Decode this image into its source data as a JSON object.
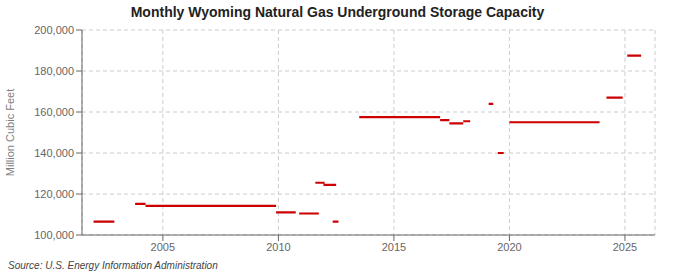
{
  "chart_data": {
    "type": "segments",
    "title": "Monthly Wyoming Natural Gas Underground Storage Capacity",
    "ylabel": "Million Cubic Feet",
    "source": "Source: U.S. Energy Information Administration",
    "color": "#cc0000",
    "grid": true,
    "xlim": [
      2001.5,
      2026.3
    ],
    "ylim": [
      100000,
      200000
    ],
    "xticks": [
      2005,
      2010,
      2015,
      2020,
      2025
    ],
    "yticks": [
      {
        "value": 100000,
        "label": "100,000"
      },
      {
        "value": 120000,
        "label": "120,000"
      },
      {
        "value": 140000,
        "label": "140,000"
      },
      {
        "value": 160000,
        "label": "160,000"
      },
      {
        "value": 180000,
        "label": "180,000"
      },
      {
        "value": 200000,
        "label": "200,000"
      }
    ],
    "segments": [
      {
        "x0": 2002.0,
        "x1": 2002.9,
        "y": 106500
      },
      {
        "x0": 2003.8,
        "x1": 2004.25,
        "y": 115200
      },
      {
        "x0": 2004.25,
        "x1": 2009.9,
        "y": 114200
      },
      {
        "x0": 2009.9,
        "x1": 2010.75,
        "y": 111000
      },
      {
        "x0": 2010.9,
        "x1": 2011.75,
        "y": 110500
      },
      {
        "x0": 2011.6,
        "x1": 2012.0,
        "y": 125500
      },
      {
        "x0": 2011.95,
        "x1": 2012.5,
        "y": 124500
      },
      {
        "x0": 2012.35,
        "x1": 2012.6,
        "y": 106500
      },
      {
        "x0": 2013.5,
        "x1": 2017.0,
        "y": 157500
      },
      {
        "x0": 2017.0,
        "x1": 2017.4,
        "y": 156000
      },
      {
        "x0": 2017.4,
        "x1": 2018.0,
        "y": 154500
      },
      {
        "x0": 2018.0,
        "x1": 2018.3,
        "y": 155500
      },
      {
        "x0": 2019.1,
        "x1": 2019.3,
        "y": 164000
      },
      {
        "x0": 2019.5,
        "x1": 2019.75,
        "y": 140000
      },
      {
        "x0": 2020.0,
        "x1": 2023.9,
        "y": 155000
      },
      {
        "x0": 2024.2,
        "x1": 2024.9,
        "y": 167000
      },
      {
        "x0": 2025.1,
        "x1": 2025.7,
        "y": 187500
      }
    ]
  }
}
